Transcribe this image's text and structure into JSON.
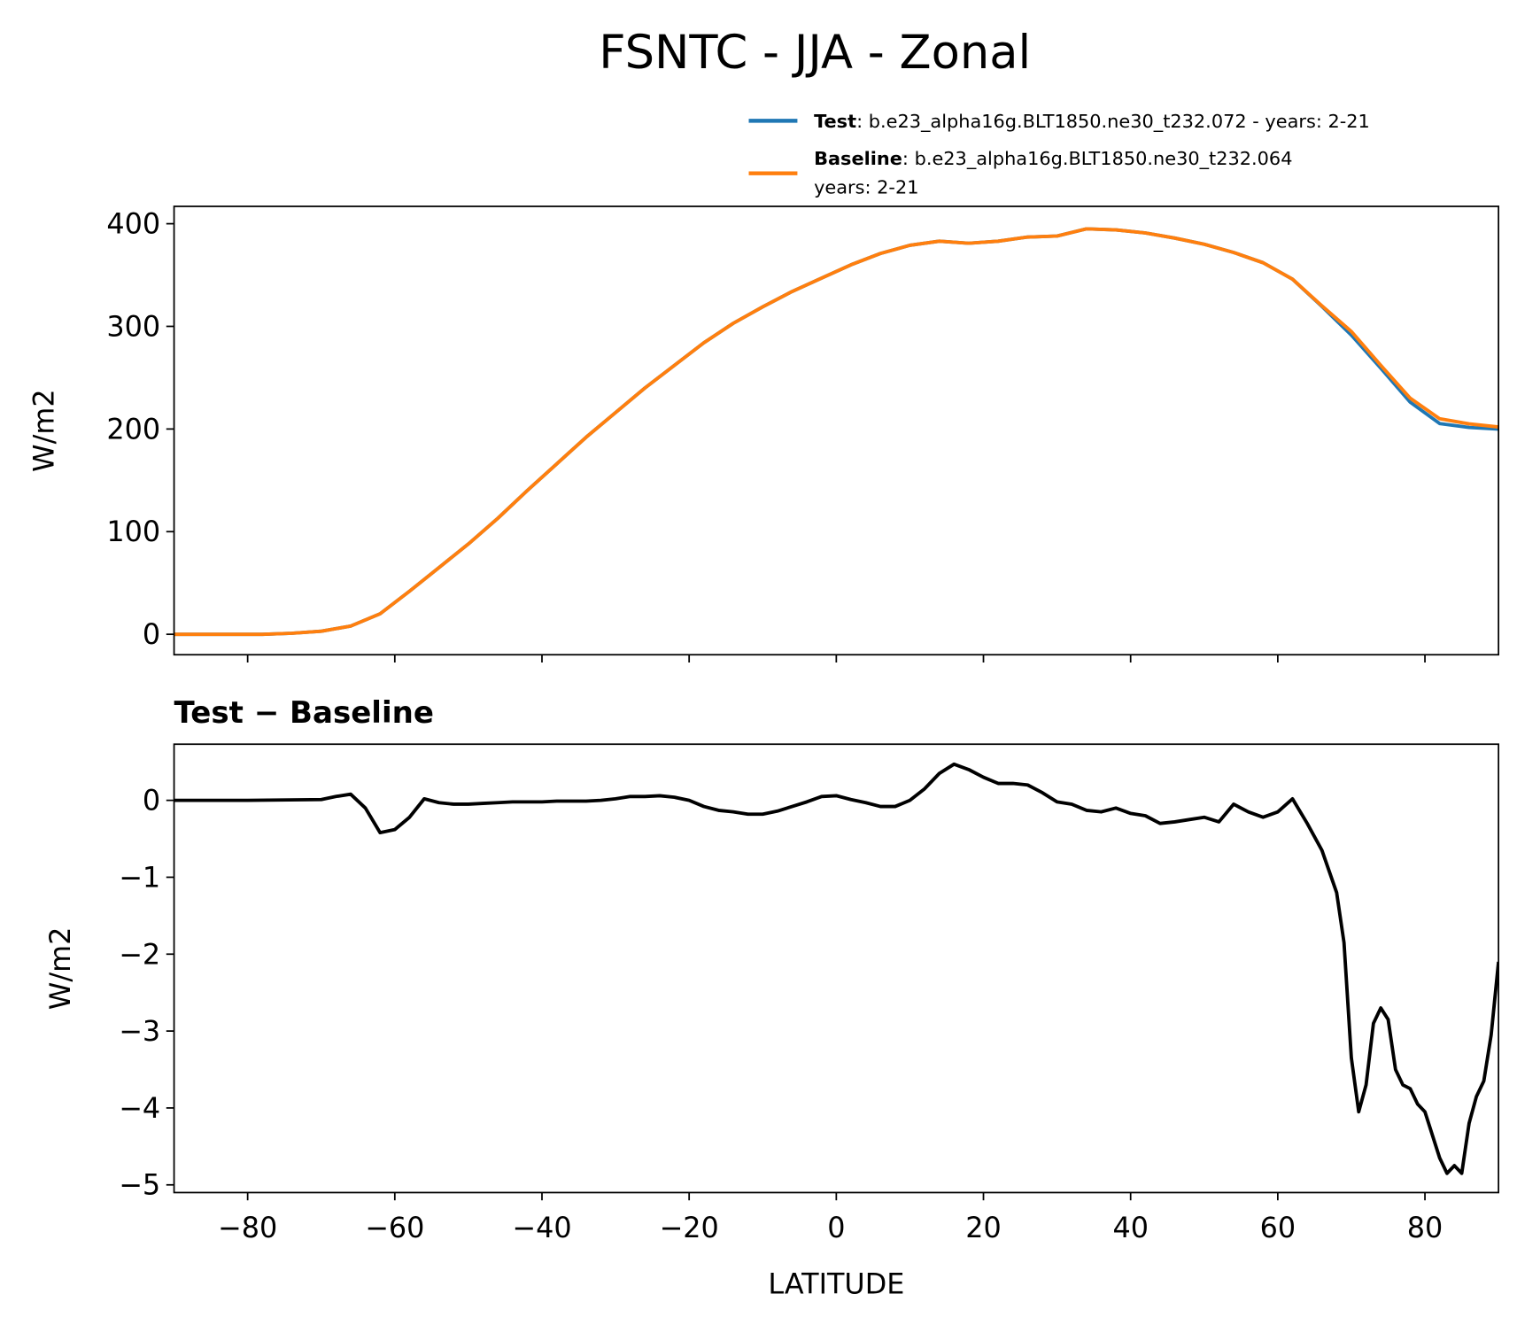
{
  "title": "FSNTC - JJA - Zonal",
  "chart_data": [
    {
      "type": "line",
      "ylabel": "W/m2",
      "xlim": [
        -90,
        90
      ],
      "ylim": [
        -19.9,
        416.9
      ],
      "xticks": [
        -80,
        -60,
        -40,
        -20,
        0,
        20,
        40,
        60,
        80
      ],
      "xticklabels_visible": false,
      "yticks": [
        0,
        100,
        200,
        300,
        400
      ],
      "x": [
        -90,
        -86,
        -82,
        -78,
        -74,
        -70,
        -66,
        -62,
        -58,
        -54,
        -50,
        -46,
        -42,
        -38,
        -34,
        -30,
        -26,
        -22,
        -18,
        -14,
        -10,
        -6,
        -2,
        2,
        6,
        10,
        14,
        18,
        22,
        26,
        30,
        34,
        38,
        42,
        46,
        50,
        54,
        58,
        62,
        66,
        70,
        74,
        78,
        82,
        86,
        90
      ],
      "series": [
        {
          "name": "Test",
          "description": ": b.e23_alpha16g.BLT1850.ne30_t232.072 - years: 2-21",
          "color": "#1f77b4",
          "values": [
            0,
            0,
            0,
            0,
            1,
            3,
            8,
            20,
            42,
            65,
            88,
            113,
            140,
            166,
            192,
            216,
            240,
            262,
            284,
            303,
            319,
            334,
            347,
            360,
            371,
            379,
            383,
            381,
            383,
            387,
            388,
            395,
            394,
            391,
            386,
            380,
            372,
            362,
            346,
            319.4,
            291.5,
            259.2,
            226.1,
            205.3,
            201.5,
            199.9
          ]
        },
        {
          "name": "Baseline",
          "description": [
            ": b.e23_alpha16g.BLT1850.ne30_t232.064",
            "years: 2-21"
          ],
          "color": "#ff7f0e",
          "values": [
            0,
            0,
            0,
            0,
            1,
            3,
            8,
            20,
            42,
            65,
            88,
            113,
            140,
            166,
            192,
            216,
            240,
            262,
            284,
            303,
            319,
            334,
            347,
            360,
            371,
            379,
            383,
            381,
            383,
            387,
            388,
            395,
            394,
            391,
            386,
            380,
            372,
            362,
            346,
            320,
            295,
            262,
            230,
            210,
            205,
            202
          ]
        }
      ]
    },
    {
      "type": "line",
      "title": "Test − Baseline",
      "xlabel": "LATITUDE",
      "ylabel": "W/m2",
      "xlim": [
        -90,
        90
      ],
      "ylim": [
        -5.1,
        0.73
      ],
      "xticks": [
        {
          "value": -80,
          "label": "−80"
        },
        {
          "value": -60,
          "label": "−60"
        },
        {
          "value": -40,
          "label": "−40"
        },
        {
          "value": -20,
          "label": "−20"
        },
        0,
        20,
        40,
        60,
        80
      ],
      "yticks": [
        {
          "value": -5,
          "label": "−5"
        },
        {
          "value": -4,
          "label": "−4"
        },
        {
          "value": -3,
          "label": "−3"
        },
        {
          "value": -2,
          "label": "−2"
        },
        {
          "value": -1,
          "label": "−1"
        },
        0
      ],
      "x": [
        -90,
        -80,
        -70,
        -68,
        -66,
        -64,
        -62,
        -60,
        -58,
        -56,
        -54,
        -52,
        -50,
        -48,
        -46,
        -44,
        -42,
        -40,
        -38,
        -36,
        -34,
        -32,
        -30,
        -28,
        -26,
        -24,
        -22,
        -20,
        -18,
        -16,
        -14,
        -12,
        -10,
        -8,
        -6,
        -4,
        -2,
        0,
        2,
        4,
        6,
        8,
        10,
        12,
        14,
        16,
        18,
        20,
        22,
        24,
        26,
        28,
        30,
        32,
        34,
        36,
        38,
        40,
        42,
        44,
        46,
        48,
        50,
        52,
        54,
        56,
        58,
        60,
        62,
        64,
        66,
        68,
        69,
        70,
        71,
        72,
        73,
        74,
        75,
        76,
        77,
        78,
        79,
        80,
        82,
        83,
        84,
        85,
        86,
        87,
        88,
        89,
        90
      ],
      "series": [
        {
          "name": "Test − Baseline",
          "color": "#000000",
          "values": [
            0,
            0,
            0.01,
            0.05,
            0.08,
            -0.1,
            -0.42,
            -0.38,
            -0.22,
            0.02,
            -0.03,
            -0.05,
            -0.05,
            -0.04,
            -0.03,
            -0.02,
            -0.02,
            -0.02,
            -0.01,
            -0.01,
            -0.01,
            0,
            0.02,
            0.05,
            0.05,
            0.06,
            0.04,
            0,
            -0.08,
            -0.13,
            -0.15,
            -0.18,
            -0.18,
            -0.14,
            -0.08,
            -0.02,
            0.05,
            0.06,
            0.01,
            -0.03,
            -0.08,
            -0.08,
            0,
            0.15,
            0.35,
            0.47,
            0.4,
            0.3,
            0.22,
            0.22,
            0.2,
            0.1,
            -0.02,
            -0.05,
            -0.13,
            -0.15,
            -0.1,
            -0.17,
            -0.2,
            -0.3,
            -0.28,
            -0.25,
            -0.22,
            -0.28,
            -0.05,
            -0.15,
            -0.22,
            -0.15,
            0.02,
            -0.3,
            -0.65,
            -1.2,
            -1.85,
            -3.35,
            -4.05,
            -3.7,
            -2.9,
            -2.7,
            -2.85,
            -3.5,
            -3.7,
            -3.75,
            -3.95,
            -4.05,
            -4.65,
            -4.85,
            -4.75,
            -4.85,
            -4.2,
            -3.85,
            -3.65,
            -3.05,
            -2.1
          ]
        }
      ]
    }
  ]
}
